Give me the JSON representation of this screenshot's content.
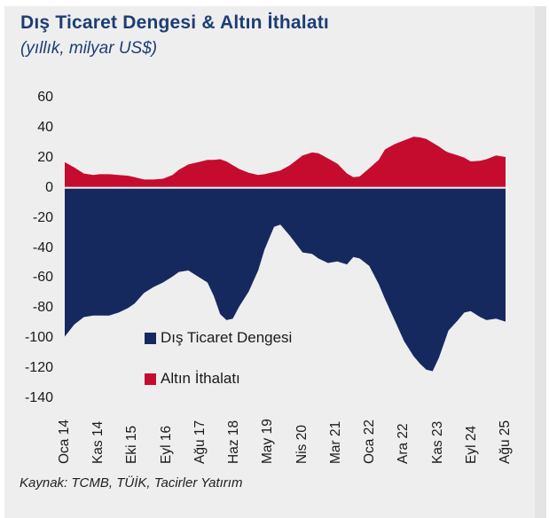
{
  "header": {
    "title": "Dış Ticaret Dengesi & Altın İthalatı",
    "subtitle": "(yıllık, milyar US$)"
  },
  "footer": {
    "source": "Kaynak: TCMB, TÜİK, Tacirler Yatırım"
  },
  "legend": {
    "items": [
      {
        "label": "Dış Ticaret Dengesi",
        "color": "#16295f"
      },
      {
        "label": "Altın İthalatı",
        "color": "#c60c2e"
      }
    ]
  },
  "colors": {
    "panel_bg": "#efeeef",
    "trade_navy": "#16295f",
    "gold_red": "#c60c2e",
    "title_blue": "#1b3e74",
    "axis_text": "#1a1a1a",
    "zero_line": "#f6f3f3"
  },
  "chart_data": {
    "type": "area",
    "title": "Dış Ticaret Dengesi & Altın İthalatı",
    "subtitle": "(yıllık, milyar US$)",
    "xlabel": "",
    "ylabel": "milyar US$",
    "ylim": [
      -140,
      60
    ],
    "y_ticks": [
      60,
      40,
      20,
      0,
      -20,
      -40,
      -60,
      -80,
      -100,
      -120,
      -140
    ],
    "x_tick_labels": [
      "Oca 14",
      "Kas 14",
      "Eki 15",
      "Eyl 16",
      "Ağu 17",
      "Haz 18",
      "May 19",
      "Nis 20",
      "Mar 21",
      "Oca 22",
      "Ara 22",
      "Kas 23",
      "Eyl 24",
      "Ağu 25"
    ],
    "x_range_months": [
      0,
      139
    ],
    "grid": false,
    "legend_position": "inside-bottom-left",
    "x": [
      0,
      3,
      6,
      9,
      11,
      14,
      17,
      20,
      22,
      25,
      28,
      31,
      34,
      36,
      39,
      42,
      45,
      47,
      49,
      51,
      53,
      55,
      58,
      61,
      63,
      66,
      68,
      71,
      75,
      78,
      80,
      83,
      86,
      89,
      91,
      93,
      96,
      99,
      101,
      104,
      107,
      110,
      112,
      114,
      116,
      118,
      120,
      121,
      124,
      126,
      128,
      131,
      133,
      136,
      139
    ],
    "series": [
      {
        "name": "Dış Ticaret Dengesi",
        "color": "#16295f",
        "values": [
          -99,
          -91,
          -86,
          -85,
          -85,
          -85,
          -83,
          -80,
          -77,
          -70,
          -66,
          -63,
          -59,
          -56,
          -55,
          -59,
          -63,
          -72,
          -84,
          -88,
          -87,
          -79,
          -69,
          -55,
          -41,
          -26,
          -24.5,
          -32,
          -43,
          -44,
          -47,
          -50,
          -49,
          -51,
          -46,
          -47,
          -52,
          -64,
          -74,
          -88,
          -102,
          -112,
          -117,
          -121,
          -122,
          -113,
          -101,
          -95,
          -88,
          -83,
          -82,
          -86,
          -88,
          -87,
          -89
        ]
      },
      {
        "name": "Altın İthalatı",
        "color": "#c60c2e",
        "values": [
          17,
          13.5,
          9.5,
          8.5,
          9,
          9,
          8.5,
          8,
          7,
          5.5,
          5.5,
          6,
          8.5,
          12,
          15.5,
          17,
          18.5,
          18.5,
          19,
          17.5,
          15,
          12.5,
          10,
          8.5,
          9,
          10.5,
          11.5,
          15,
          21.5,
          23.5,
          23,
          19.5,
          16,
          9.5,
          7,
          7.5,
          13,
          18.5,
          25.5,
          29,
          31.5,
          34,
          33.5,
          32.5,
          30,
          27.5,
          24.5,
          23.5,
          21.5,
          20,
          17.5,
          18,
          19,
          21.5,
          20.5
        ]
      }
    ]
  }
}
